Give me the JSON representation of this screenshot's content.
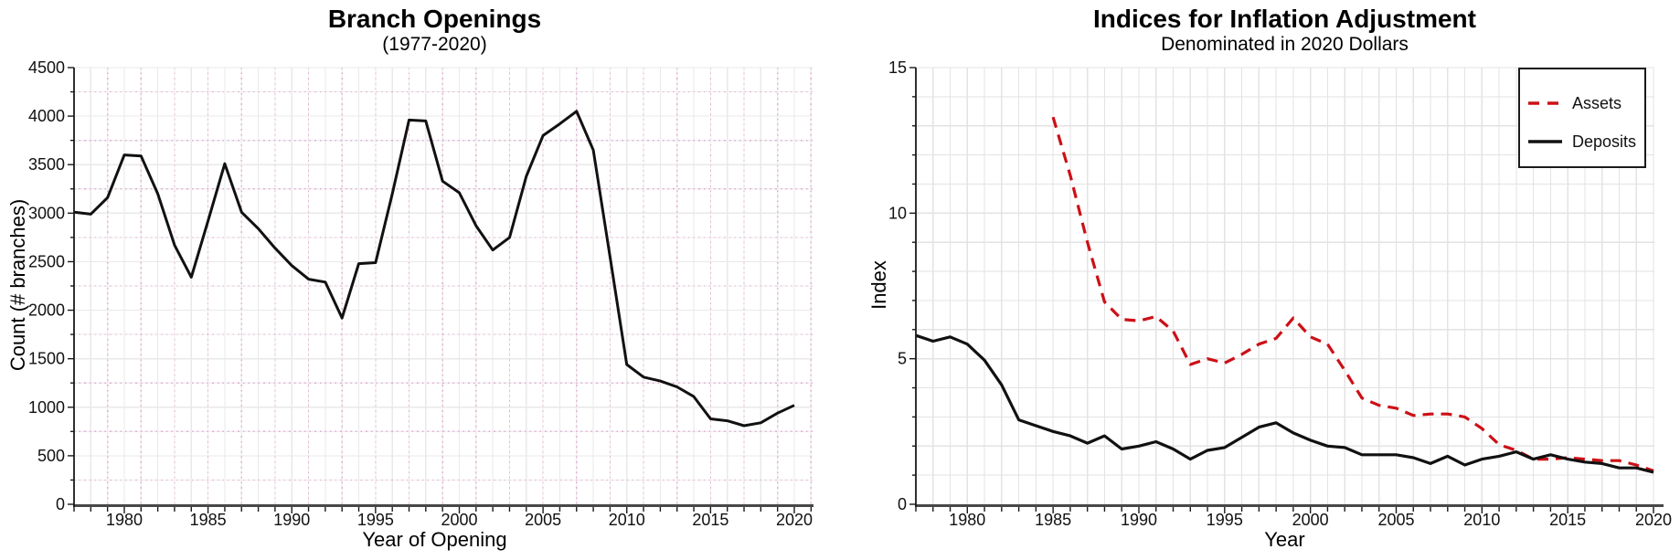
{
  "figure": {
    "background": "#ffffff",
    "text_color": "#000000",
    "axis_color": "#444444"
  },
  "chart_data": [
    {
      "type": "line",
      "title": "Branch Openings",
      "subtitle": "(1977-2020)",
      "xlabel": "Year of Opening",
      "ylabel": "Count (# branches)",
      "xlim": [
        1977,
        2020
      ],
      "ylim": [
        0,
        4500
      ],
      "xticks_labeled": [
        1980,
        1985,
        1990,
        1995,
        2000,
        2005,
        2010,
        2015,
        2020
      ],
      "ytick_minor_step": 250,
      "ytick_label_every": 500,
      "grid": {
        "on": true,
        "x_minor_step": 1,
        "y_minor_step": 250,
        "color": "#e9e9e9",
        "accent_color": "#dd9ec7",
        "accented": true
      },
      "legend": null,
      "series": [
        {
          "name": "Branch Openings",
          "color": "#111111",
          "style": "solid",
          "width": 3,
          "years": [
            1977,
            1978,
            1979,
            1980,
            1981,
            1982,
            1983,
            1984,
            1985,
            1986,
            1987,
            1988,
            1989,
            1990,
            1991,
            1992,
            1993,
            1994,
            1995,
            1996,
            1997,
            1998,
            1999,
            2000,
            2001,
            2002,
            2003,
            2004,
            2005,
            2006,
            2007,
            2008,
            2009,
            2010,
            2011,
            2012,
            2013,
            2014,
            2015,
            2016,
            2017,
            2018,
            2019,
            2020
          ],
          "values": [
            3010,
            2990,
            3160,
            3600,
            3590,
            3200,
            2670,
            2340,
            2920,
            3510,
            3010,
            2840,
            2640,
            2460,
            2320,
            2290,
            1920,
            2480,
            2490,
            3200,
            3960,
            3950,
            3330,
            3210,
            2870,
            2620,
            2750,
            3380,
            3800,
            3920,
            4050,
            3650,
            2550,
            1440,
            1310,
            1270,
            1210,
            1110,
            880,
            860,
            810,
            840,
            940,
            1020
          ]
        }
      ]
    },
    {
      "type": "line",
      "title": "Indices for Inflation Adjustment",
      "subtitle": "Denominated in 2020 Dollars",
      "xlabel": "Year",
      "ylabel": "Index",
      "xlim": [
        1977,
        2020
      ],
      "ylim": [
        0,
        15
      ],
      "xticks_labeled": [
        1980,
        1985,
        1990,
        1995,
        2000,
        2005,
        2010,
        2015,
        2020
      ],
      "ytick_minor_step": 1,
      "ytick_label_every": 5,
      "grid": {
        "on": true,
        "x_minor_step": 1,
        "y_minor_step": 1,
        "color": "#e3e3e3",
        "accent_color": null,
        "accented": false
      },
      "legend": {
        "position": "top-right",
        "labels": [
          "Assets",
          "Deposits"
        ]
      },
      "series": [
        {
          "name": "Assets",
          "color": "#cc1016",
          "style": "dashed",
          "width": 3.2,
          "years": [
            1985,
            1986,
            1987,
            1988,
            1989,
            1990,
            1991,
            1992,
            1993,
            1994,
            1995,
            1996,
            1997,
            1998,
            1999,
            2000,
            2001,
            2002,
            2003,
            2004,
            2005,
            2006,
            2007,
            2008,
            2009,
            2010,
            2011,
            2012,
            2013,
            2014,
            2015,
            2016,
            2017,
            2018,
            2019,
            2020
          ],
          "values": [
            13.3,
            11.3,
            9.0,
            6.95,
            6.35,
            6.3,
            6.45,
            5.95,
            4.8,
            5.0,
            4.85,
            5.15,
            5.5,
            5.7,
            6.4,
            5.75,
            5.5,
            4.6,
            3.65,
            3.4,
            3.3,
            3.05,
            3.1,
            3.1,
            3.0,
            2.6,
            2.05,
            1.85,
            1.55,
            1.55,
            1.6,
            1.55,
            1.5,
            1.5,
            1.35,
            1.15
          ]
        },
        {
          "name": "Deposits",
          "color": "#111111",
          "style": "solid",
          "width": 3.2,
          "years": [
            1977,
            1978,
            1979,
            1980,
            1981,
            1982,
            1983,
            1984,
            1985,
            1986,
            1987,
            1988,
            1989,
            1990,
            1991,
            1992,
            1993,
            1994,
            1995,
            1996,
            1997,
            1998,
            1999,
            2000,
            2001,
            2002,
            2003,
            2004,
            2005,
            2006,
            2007,
            2008,
            2009,
            2010,
            2011,
            2012,
            2013,
            2014,
            2015,
            2016,
            2017,
            2018,
            2019,
            2020
          ],
          "values": [
            5.8,
            5.6,
            5.75,
            5.5,
            4.95,
            4.1,
            2.9,
            2.7,
            2.5,
            2.35,
            2.1,
            2.35,
            1.9,
            2.0,
            2.15,
            1.9,
            1.55,
            1.85,
            1.95,
            2.3,
            2.65,
            2.8,
            2.45,
            2.2,
            2.0,
            1.95,
            1.7,
            1.7,
            1.7,
            1.6,
            1.4,
            1.65,
            1.35,
            1.55,
            1.65,
            1.8,
            1.55,
            1.7,
            1.55,
            1.45,
            1.4,
            1.25,
            1.25,
            1.1
          ]
        }
      ]
    }
  ]
}
